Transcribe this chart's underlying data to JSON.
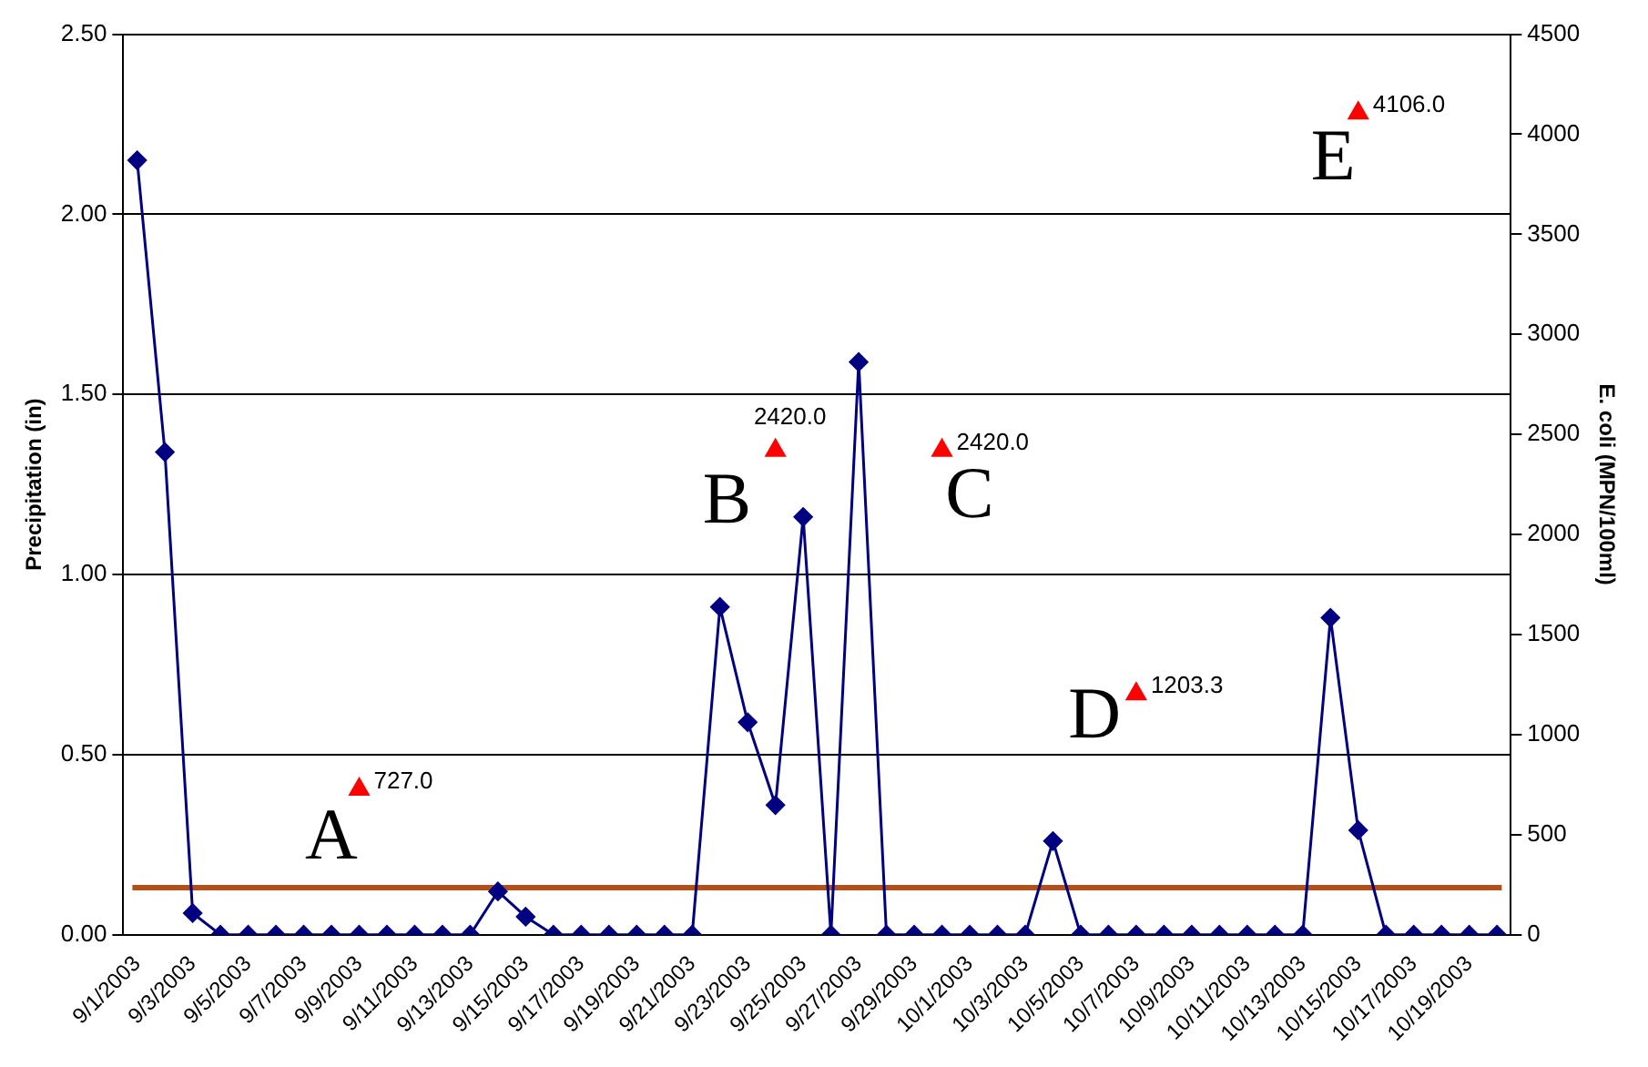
{
  "chart_data": {
    "type": "line",
    "ylabel": "Precipitation (in)",
    "y2label": "E. coli (MPN/100ml)",
    "xlim": [
      "2003-08-31T12:00",
      "2003-10-20T12:00"
    ],
    "xticks": [
      {
        "value": "2003-09-01",
        "label": "9/1/2003"
      },
      {
        "value": "2003-09-03",
        "label": "9/3/2003"
      },
      {
        "value": "2003-09-05",
        "label": "9/5/2003"
      },
      {
        "value": "2003-09-07",
        "label": "9/7/2003"
      },
      {
        "value": "2003-09-09",
        "label": "9/9/2003"
      },
      {
        "value": "2003-09-11",
        "label": "9/11/2003"
      },
      {
        "value": "2003-09-13",
        "label": "9/13/2003"
      },
      {
        "value": "2003-09-15",
        "label": "9/15/2003"
      },
      {
        "value": "2003-09-17",
        "label": "9/17/2003"
      },
      {
        "value": "2003-09-19",
        "label": "9/19/2003"
      },
      {
        "value": "2003-09-21",
        "label": "9/21/2003"
      },
      {
        "value": "2003-09-23",
        "label": "9/23/2003"
      },
      {
        "value": "2003-09-25",
        "label": "9/25/2003"
      },
      {
        "value": "2003-09-27",
        "label": "9/27/2003"
      },
      {
        "value": "2003-09-29",
        "label": "9/29/2003"
      },
      {
        "value": "2003-10-01",
        "label": "10/1/2003"
      },
      {
        "value": "2003-10-03",
        "label": "10/3/2003"
      },
      {
        "value": "2003-10-05",
        "label": "10/5/2003"
      },
      {
        "value": "2003-10-07",
        "label": "10/7/2003"
      },
      {
        "value": "2003-10-09",
        "label": "10/9/2003"
      },
      {
        "value": "2003-10-11",
        "label": "10/11/2003"
      },
      {
        "value": "2003-10-13",
        "label": "10/13/2003"
      },
      {
        "value": "2003-10-15",
        "label": "10/15/2003"
      },
      {
        "value": "2003-10-17",
        "label": "10/17/2003"
      },
      {
        "value": "2003-10-19",
        "label": "10/19/2003"
      }
    ],
    "ylim": [
      0,
      2.5
    ],
    "yticks": [
      {
        "value": 0,
        "label": "0.00"
      },
      {
        "value": 0.5,
        "label": "0.50"
      },
      {
        "value": 1,
        "label": "1.00"
      },
      {
        "value": 1.5,
        "label": "1.50"
      },
      {
        "value": 2,
        "label": "2.00"
      },
      {
        "value": 2.5,
        "label": "2.50"
      }
    ],
    "y2lim": [
      0,
      4500
    ],
    "y2ticks": [
      0,
      500,
      1000,
      1500,
      2000,
      2500,
      3000,
      3500,
      4000,
      4500
    ],
    "grid": "y",
    "series": [
      {
        "color": "#000080",
        "marker": "diamond",
        "x": [
          "2003-09-01",
          "2003-09-02",
          "2003-09-03",
          "2003-09-04",
          "2003-09-05",
          "2003-09-06",
          "2003-09-07",
          "2003-09-08",
          "2003-09-09",
          "2003-09-10",
          "2003-09-11",
          "2003-09-12",
          "2003-09-13",
          "2003-09-14",
          "2003-09-15",
          "2003-09-16",
          "2003-09-17",
          "2003-09-18",
          "2003-09-19",
          "2003-09-20",
          "2003-09-21",
          "2003-09-22",
          "2003-09-23",
          "2003-09-24",
          "2003-09-25",
          "2003-09-26",
          "2003-09-27",
          "2003-09-28",
          "2003-09-29",
          "2003-09-30",
          "2003-10-01",
          "2003-10-02",
          "2003-10-03",
          "2003-10-04",
          "2003-10-05",
          "2003-10-06",
          "2003-10-07",
          "2003-10-08",
          "2003-10-09",
          "2003-10-10",
          "2003-10-11",
          "2003-10-12",
          "2003-10-13",
          "2003-10-14",
          "2003-10-15",
          "2003-10-16",
          "2003-10-17",
          "2003-10-18",
          "2003-10-19",
          "2003-10-20"
        ],
        "values": [
          2.15,
          1.34,
          0.06,
          0,
          0,
          0,
          0,
          0,
          0,
          0,
          0,
          0,
          0,
          0.12,
          0.05,
          0,
          0,
          0,
          0,
          0,
          0,
          0.91,
          0.59,
          0.36,
          1.16,
          0,
          1.59,
          0,
          0,
          0,
          0,
          0,
          0,
          0.26,
          0,
          0,
          0,
          0,
          0,
          0,
          0,
          0,
          0,
          0.88,
          0.29,
          0,
          0,
          0,
          0,
          0
        ]
      },
      {
        "type": "scatter",
        "axis": "y2",
        "color": "#ff0000",
        "marker": "triangle",
        "x": [
          "2003-09-09",
          "2003-09-24",
          "2003-09-30",
          "2003-10-07",
          "2003-10-15"
        ],
        "values": [
          727.0,
          2420.0,
          2420.0,
          1203.3,
          4106.0
        ],
        "value_labels": [
          "727.0",
          "2420.0",
          "2420.0",
          "1203.3",
          "4106.0"
        ]
      }
    ],
    "ref_lines": [
      {
        "axis": "y2",
        "value": 235,
        "color": "#b0501c"
      }
    ],
    "annotations": [
      "A",
      "B",
      "C",
      "D",
      "E"
    ]
  }
}
